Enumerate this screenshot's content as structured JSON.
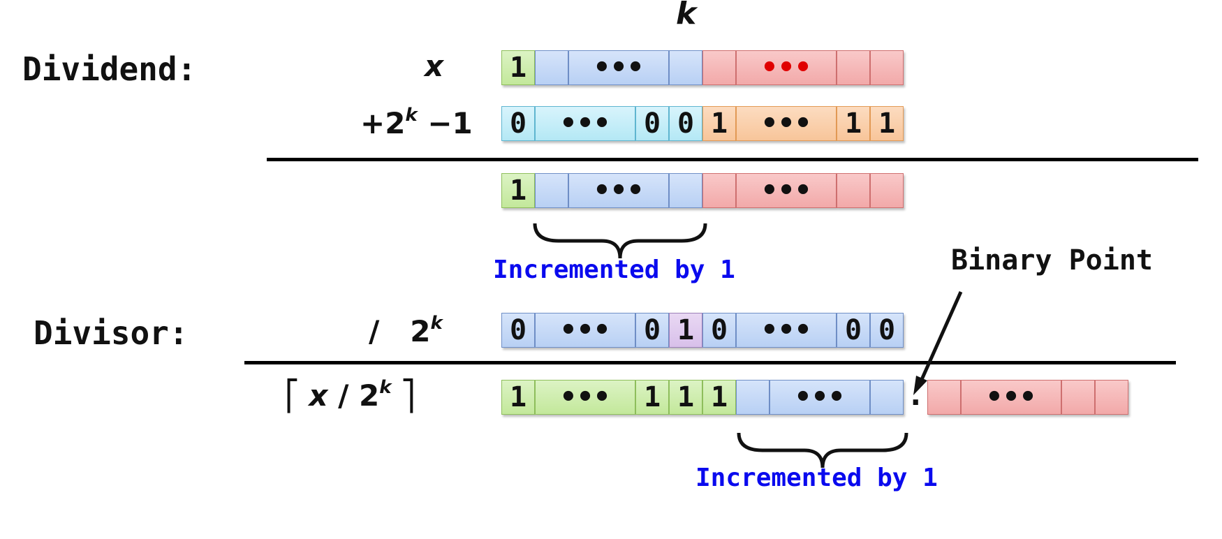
{
  "k_label": "k",
  "dividend_label": "Dividend:",
  "divisor_label": "Divisor:",
  "operands": {
    "x": "x",
    "plus_prefix": "+2",
    "plus_exp": "k",
    "plus_suffix": " −1",
    "div_prefix": "/   2",
    "div_exp": "k",
    "result_open": "⎡ ",
    "result_x": "x",
    "result_mid": " / 2",
    "result_exp": "k",
    "result_close": " ⎤"
  },
  "rows": {
    "row_x": [
      "1",
      "",
      "•••",
      "",
      "",
      "•••",
      "",
      ""
    ],
    "row_addend": [
      "0",
      "•••",
      "0",
      "0",
      "1",
      "•••",
      "1",
      "1"
    ],
    "row_sum": [
      "1",
      "",
      "•••",
      "",
      "",
      "•••",
      "",
      ""
    ],
    "row_divisor": [
      "0",
      "•••",
      "0",
      "1",
      "0",
      "•••",
      "0",
      "0"
    ],
    "row_result_int": [
      "1",
      "•••",
      "1",
      "1",
      "1",
      "",
      "•••",
      ""
    ],
    "row_result_frac": [
      "",
      "•••",
      "",
      ""
    ]
  },
  "annotations": {
    "incremented_1": "Incremented by 1",
    "incremented_2": "Incremented by 1",
    "binary_point": "Binary Point",
    "point_glyph": "."
  },
  "colors": {
    "green": "#c3e89b",
    "blue": "#b8d0f4",
    "red": "#f2a9a9",
    "cyan": "#b4e8f5",
    "orange": "#f8c59a",
    "purple": "#d8c0ea",
    "note_blue": "#0a0aee"
  }
}
